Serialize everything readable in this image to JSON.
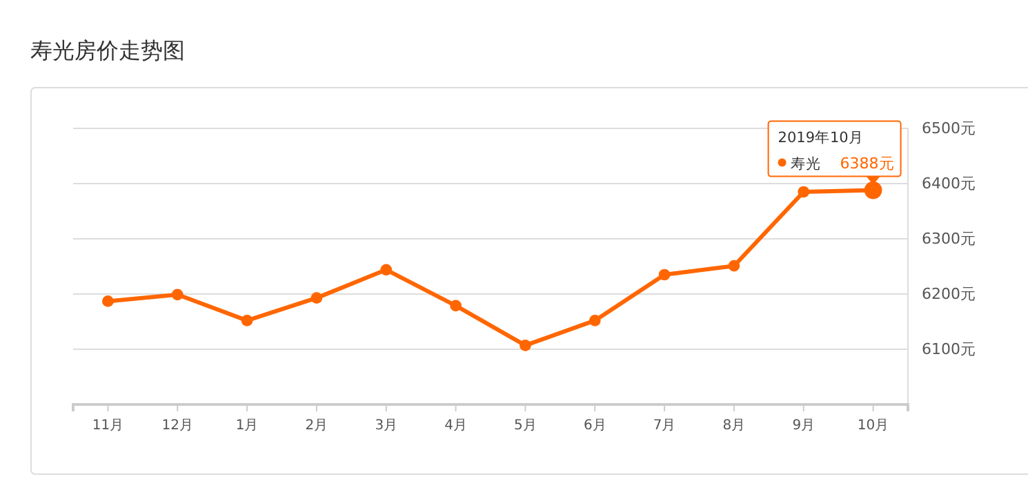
{
  "chart_data": {
    "type": "line",
    "title": "寿光房价走势图",
    "categories": [
      "11月",
      "12月",
      "1月",
      "2月",
      "3月",
      "4月",
      "5月",
      "6月",
      "7月",
      "8月",
      "9月",
      "10月"
    ],
    "series": [
      {
        "name": "寿光",
        "color": "#ff6600",
        "values": [
          6187,
          6199,
          6152,
          6193,
          6244,
          6179,
          6107,
          6152,
          6235,
          6251,
          6385,
          6388
        ],
        "value_labels": [
          null,
          null,
          null,
          null,
          null,
          null,
          null,
          null,
          null,
          null,
          null,
          "6388元"
        ]
      }
    ],
    "annotations": [
      "2019年10月"
    ],
    "ylim": [
      6000,
      6500
    ],
    "yticks": [
      {
        "value": 6100,
        "label": "6100元"
      },
      {
        "value": 6200,
        "label": "6200元"
      },
      {
        "value": 6300,
        "label": "6300元"
      },
      {
        "value": 6400,
        "label": "6400元"
      },
      {
        "value": 6500,
        "label": "6500元"
      }
    ],
    "grid": "y",
    "marker": "circle",
    "line_style": "solid"
  }
}
